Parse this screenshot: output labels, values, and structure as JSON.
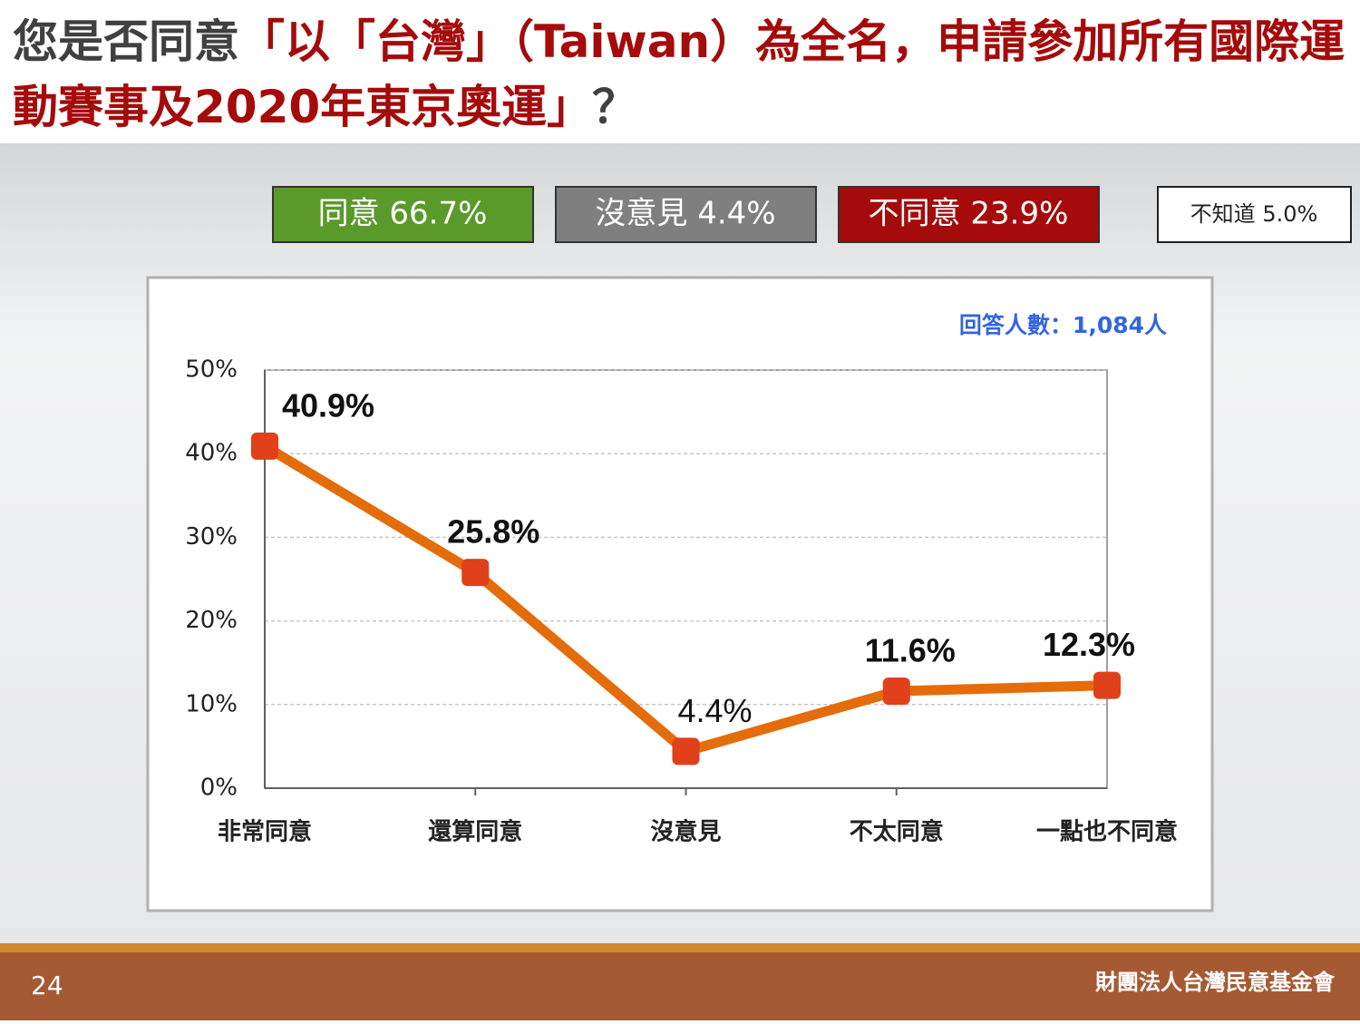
{
  "slide": {
    "title": [
      "您是否同意",
      "「以「台灣」（Taiwan）為全名，申請參加所有國際運動賽事及2020年東京奧運」",
      "？"
    ],
    "summary": [
      "同意 66.7%",
      "沒意見 4.4%",
      "不同意 23.9%",
      "不知道 5.0%"
    ],
    "page_number": "24",
    "footer": "財團法人台灣民意基金會"
  },
  "chart_data": {
    "type": "line",
    "annotation": "回答人數：1,084人",
    "categories": [
      "非常同意",
      "還算同意",
      "沒意見",
      "不太同意",
      "一點也不同意"
    ],
    "values": [
      40.9,
      25.8,
      4.4,
      11.6,
      12.3
    ],
    "value_labels": [
      "40.9%",
      "25.8%",
      "4.4%",
      "11.6%",
      "12.3%"
    ],
    "color": "#e46c0a",
    "marker_color": "#e0401a",
    "ylim": [
      0,
      50
    ],
    "yticks": [
      {
        "value": 0,
        "label": "0%"
      },
      {
        "value": 10,
        "label": "10%"
      },
      {
        "value": 20,
        "label": "20%"
      },
      {
        "value": 30,
        "label": "30%"
      },
      {
        "value": 40,
        "label": "40%"
      },
      {
        "value": 50,
        "label": "50%"
      }
    ],
    "grid": true
  }
}
